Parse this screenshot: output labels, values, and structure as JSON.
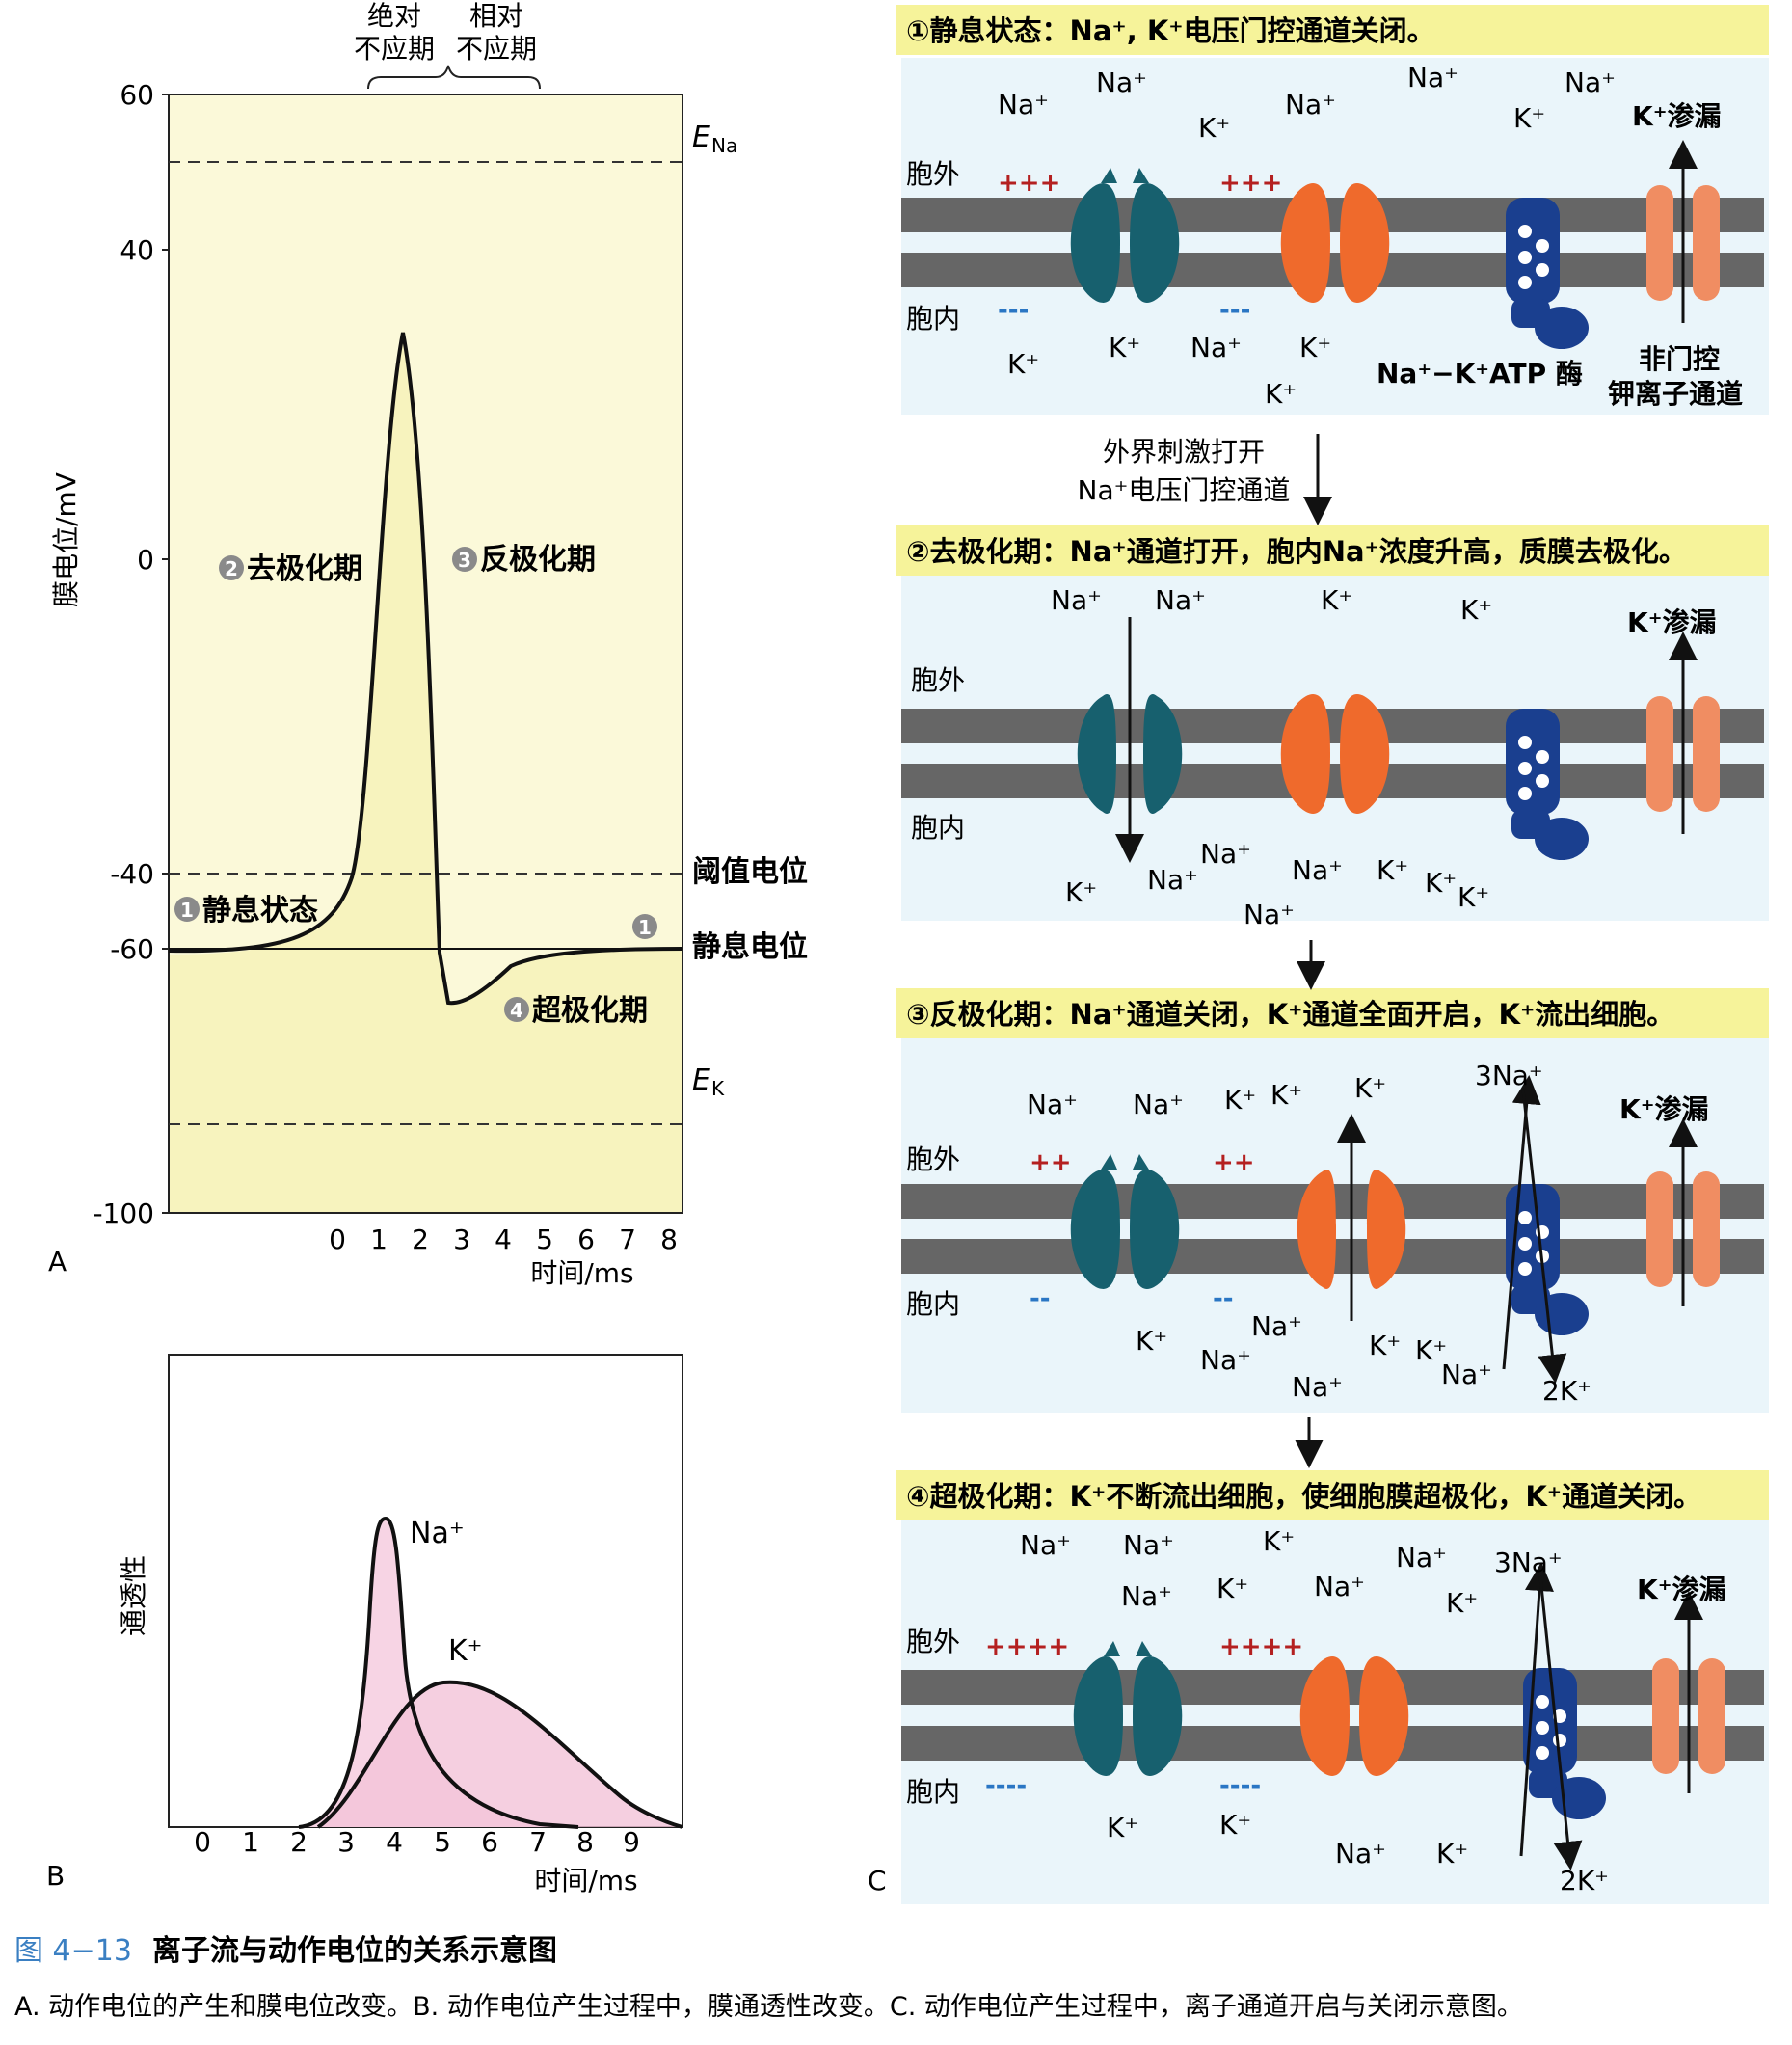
{
  "panelA": {
    "letter": "A",
    "ylabel": "膜电位/mV",
    "xlabel": "时间/ms",
    "yticks": [
      "60",
      "40",
      "0",
      "-40",
      "-60",
      "-100"
    ],
    "xticks": [
      "0",
      "1",
      "2",
      "3",
      "4",
      "5",
      "6",
      "7",
      "8"
    ],
    "refractory_abs_top": "绝对",
    "refractory_abs_bottom": "不应期",
    "refractory_rel_top": "相对",
    "refractory_rel_bottom": "不应期",
    "ena_main": "E",
    "ena_sub": "Na",
    "ek_main": "E",
    "ek_sub": "K",
    "threshold_label": "阈值电位",
    "resting_label": "静息电位",
    "phase1_num": "1",
    "phase1_label": "静息状态",
    "phase2_num": "2",
    "phase2_label": "去极化期",
    "phase3_num": "3",
    "phase3_label": "反极化期",
    "phase4_num": "4",
    "phase4_label": "超极化期",
    "end_num": "1"
  },
  "panelB": {
    "letter": "B",
    "ylabel": "通透性",
    "xlabel": "时间/ms",
    "xticks": [
      "0",
      "1",
      "2",
      "3",
      "4",
      "5",
      "6",
      "7",
      "8",
      "9"
    ],
    "na_label": "Na⁺",
    "k_label": "K⁺"
  },
  "panelC": {
    "letter": "C",
    "s1_title": "①静息状态：Na⁺, K⁺电压门控通道关闭。",
    "s2_title": "②去极化期：Na⁺通道打开，胞内Na⁺浓度升高，质膜去极化。",
    "s3_title": "③反极化期：Na⁺通道关闭，K⁺通道全面开启，K⁺流出细胞。",
    "s4_title": "④超极化期：K⁺不断流出细胞，使细胞膜超极化，K⁺通道关闭。",
    "arrow1_line1": "外界刺激打开",
    "arrow1_line2": "Na⁺电压门控通道",
    "outside": "胞外",
    "inside": "胞内",
    "leak": "K⁺渗漏",
    "pump_label": "Na⁺−K⁺ATP 酶",
    "nongated_line1": "非门控",
    "nongated_line2": "钾离子通道",
    "na": "Na⁺",
    "k": "K⁺",
    "three_na": "3Na⁺",
    "two_k": "2K⁺",
    "plus3": "+++",
    "minus3": "---",
    "plus2": "++",
    "minus2": "--",
    "plus4": "++++",
    "minus4": "----"
  },
  "caption": {
    "fig_no": "图 4−13",
    "fig_title": "离子流与动作电位的关系示意图",
    "desc": "A. 动作电位的产生和膜电位改变。B. 动作电位产生过程中，膜通透性改变。C. 动作电位产生过程中，离子通道开启与关闭示意图。"
  },
  "colors": {
    "na_channel": "#17606e",
    "k_channel": "#ef6a2c",
    "pump": "#1a3f8f",
    "leak_channel": "#f08d62",
    "membrane": "#666666",
    "title_bar": "#f6f39a",
    "plus": "#b42020",
    "minus": "#2a76c4",
    "panelA_fill": "#fbf9d9",
    "panelB_fill": "#f7d4e4"
  },
  "icons": [
    "na-channel-icon",
    "k-channel-icon",
    "na-k-pump-icon",
    "k-leak-channel-icon"
  ]
}
